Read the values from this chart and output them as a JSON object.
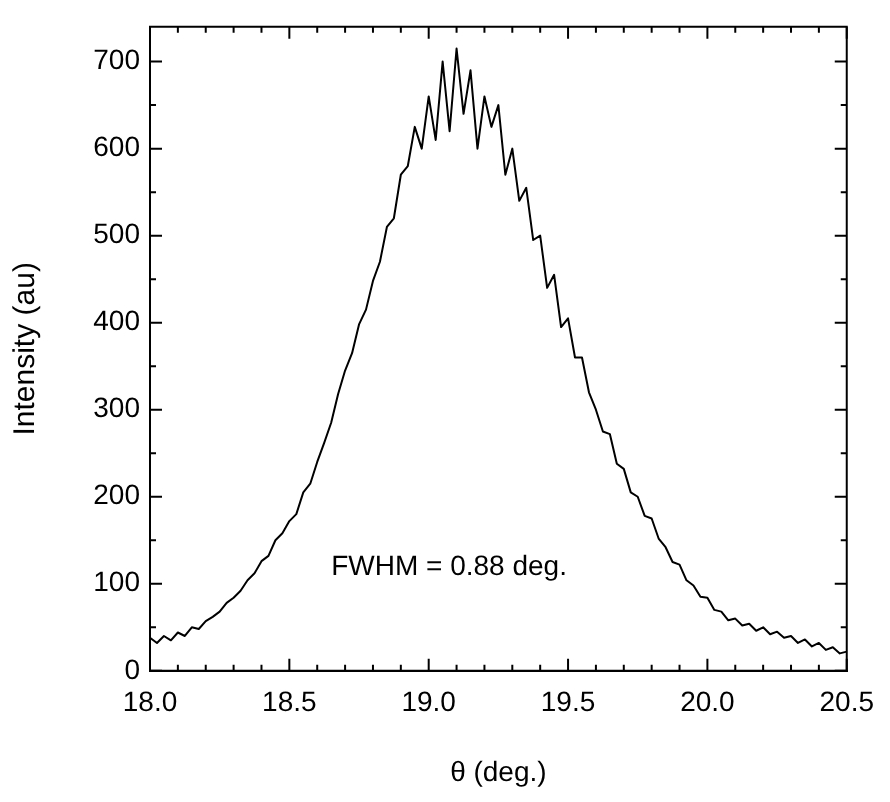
{
  "chart_data": {
    "type": "line",
    "xlabel": "θ (deg.)",
    "ylabel": "Intensity (au)",
    "annotations": [
      "FWHM = 0.88 deg."
    ],
    "xlim": [
      18,
      20.5
    ],
    "xticks": [
      {
        "value": 18,
        "label": "18.0"
      },
      {
        "value": 18.1,
        "label": null
      },
      {
        "value": 18.2,
        "label": null
      },
      {
        "value": 18.3,
        "label": null
      },
      {
        "value": 18.4,
        "label": null
      },
      {
        "value": 18.5,
        "label": "18.5"
      },
      {
        "value": 18.6,
        "label": null
      },
      {
        "value": 18.7,
        "label": null
      },
      {
        "value": 18.8,
        "label": null
      },
      {
        "value": 18.9,
        "label": null
      },
      {
        "value": 19,
        "label": "19.0"
      },
      {
        "value": 19.1,
        "label": null
      },
      {
        "value": 19.2,
        "label": null
      },
      {
        "value": 19.3,
        "label": null
      },
      {
        "value": 19.4,
        "label": null
      },
      {
        "value": 19.5,
        "label": "19.5"
      },
      {
        "value": 19.6,
        "label": null
      },
      {
        "value": 19.7,
        "label": null
      },
      {
        "value": 19.8,
        "label": null
      },
      {
        "value": 19.9,
        "label": null
      },
      {
        "value": 20,
        "label": "20.0"
      },
      {
        "value": 20.1,
        "label": null
      },
      {
        "value": 20.2,
        "label": null
      },
      {
        "value": 20.3,
        "label": null
      },
      {
        "value": 20.4,
        "label": null
      },
      {
        "value": 20.5,
        "label": "20.5"
      }
    ],
    "ylim": [
      0,
      740
    ],
    "yticks": [
      0,
      {
        "value": 50,
        "label": null
      },
      100,
      {
        "value": 150,
        "label": null
      },
      200,
      {
        "value": 250,
        "label": null
      },
      300,
      {
        "value": 350,
        "label": null
      },
      400,
      {
        "value": 450,
        "label": null
      },
      500,
      {
        "value": 550,
        "label": null
      },
      600,
      {
        "value": 650,
        "label": null
      },
      700
    ],
    "grid": false,
    "legend": false,
    "marker": "none",
    "line_style": "solid",
    "series": [
      {
        "color": "#000000",
        "x": [
          18,
          18.025,
          18.05,
          18.075,
          18.1,
          18.125,
          18.15,
          18.175,
          18.2,
          18.225,
          18.25,
          18.275,
          18.3,
          18.325,
          18.35,
          18.375,
          18.4,
          18.425,
          18.45,
          18.475,
          18.5,
          18.525,
          18.55,
          18.575,
          18.6,
          18.625,
          18.65,
          18.675,
          18.7,
          18.725,
          18.75,
          18.775,
          18.8,
          18.825,
          18.85,
          18.875,
          18.9,
          18.925,
          18.95,
          18.975,
          19,
          19.025,
          19.05,
          19.075,
          19.1,
          19.125,
          19.15,
          19.175,
          19.2,
          19.225,
          19.25,
          19.275,
          19.3,
          19.325,
          19.35,
          19.375,
          19.4,
          19.425,
          19.45,
          19.475,
          19.5,
          19.525,
          19.55,
          19.575,
          19.6,
          19.625,
          19.65,
          19.675,
          19.7,
          19.725,
          19.75,
          19.775,
          19.8,
          19.825,
          19.85,
          19.875,
          19.9,
          19.925,
          19.95,
          19.975,
          20,
          20.025,
          20.05,
          20.075,
          20.1,
          20.125,
          20.15,
          20.175,
          20.2,
          20.225,
          20.25,
          20.275,
          20.3,
          20.325,
          20.35,
          20.375,
          20.4,
          20.425,
          20.45,
          20.475,
          20.5
        ],
        "values": [
          38,
          32,
          40,
          35,
          44,
          40,
          50,
          48,
          57,
          62,
          68,
          78,
          84,
          92,
          104,
          112,
          126,
          132,
          150,
          158,
          172,
          180,
          205,
          215,
          240,
          262,
          285,
          318,
          345,
          365,
          398,
          415,
          448,
          470,
          510,
          520,
          570,
          580,
          625,
          600,
          660,
          610,
          700,
          620,
          715,
          640,
          690,
          600,
          660,
          625,
          650,
          570,
          600,
          540,
          555,
          495,
          500,
          440,
          455,
          395,
          405,
          360,
          360,
          320,
          300,
          275,
          272,
          238,
          232,
          205,
          200,
          178,
          175,
          152,
          142,
          125,
          122,
          104,
          98,
          85,
          84,
          70,
          68,
          58,
          60,
          52,
          54,
          46,
          50,
          42,
          45,
          38,
          40,
          32,
          36,
          28,
          32,
          24,
          27,
          20,
          22
        ]
      }
    ]
  }
}
